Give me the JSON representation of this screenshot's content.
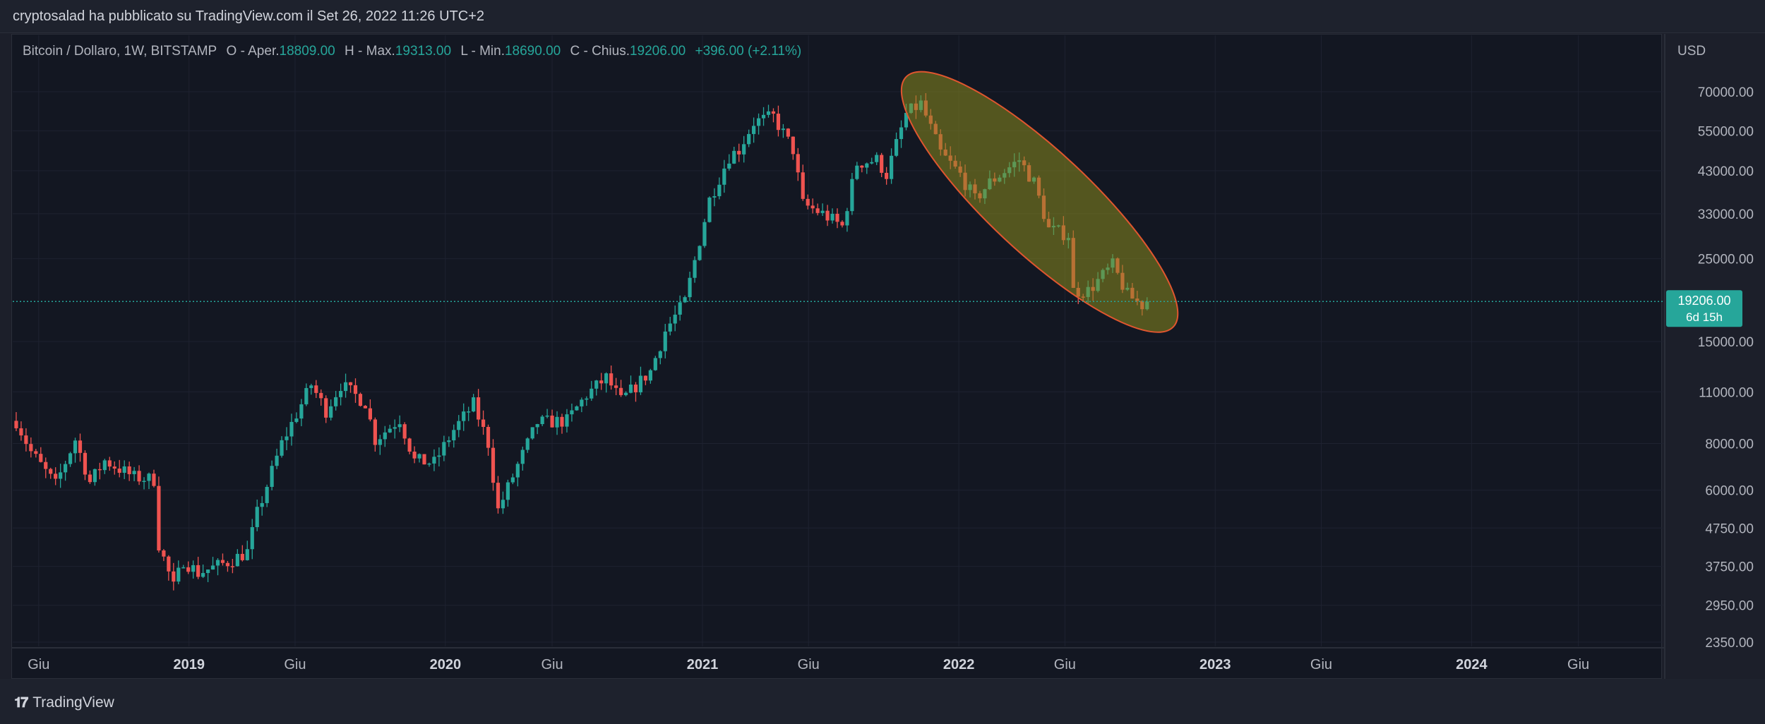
{
  "header": {
    "published_text": "cryptosalad ha pubblicato su TradingView.com il Set 26, 2022 11:26 UTC+2"
  },
  "legend": {
    "symbol": "Bitcoin / Dollaro, 1W, BITSTAMP",
    "open_label": "O - Aper.",
    "open_value": "18809.00",
    "high_label": "H - Max.",
    "high_value": "19313.00",
    "low_label": "L - Min.",
    "low_value": "18690.00",
    "close_label": "C - Chius.",
    "close_value": "19206.00",
    "change": "+396.00 (+2.11%)"
  },
  "price_badge": {
    "price": "19206.00",
    "countdown": "6d 15h"
  },
  "footer": {
    "brand": "TradingView",
    "logo_icon": "tradingview-logo-icon"
  },
  "colors": {
    "up": "#26a69a",
    "down": "#ef5350",
    "background": "#131722",
    "grid": "#1e2230",
    "highlight_fill": "#8b8b1e",
    "highlight_stroke": "#e0562f"
  },
  "chart_data": {
    "type": "candlestick",
    "currency_label": "USD",
    "y_scale": "log",
    "ylim": [
      2250,
      90000
    ],
    "y_ticks": [
      {
        "value": 70000,
        "label": "70000.00"
      },
      {
        "value": 55000,
        "label": "55000.00"
      },
      {
        "value": 43000,
        "label": "43000.00"
      },
      {
        "value": 33000,
        "label": "33000.00"
      },
      {
        "value": 25000,
        "label": "25000.00"
      },
      {
        "value": 15000,
        "label": "15000.00"
      },
      {
        "value": 11000,
        "label": "11000.00"
      },
      {
        "value": 8000,
        "label": "8000.00"
      },
      {
        "value": 6000,
        "label": "6000.00"
      },
      {
        "value": 4750,
        "label": "4750.00"
      },
      {
        "value": 3750,
        "label": "3750.00"
      },
      {
        "value": 2950,
        "label": "2950.00"
      },
      {
        "value": 2350,
        "label": "2350.00"
      }
    ],
    "x_range": [
      "2018-04-23",
      "2024-09-30"
    ],
    "x_ticks": [
      {
        "date": "2018-06-01",
        "label": "Giu",
        "bold": false
      },
      {
        "date": "2019-01-01",
        "label": "2019",
        "bold": true
      },
      {
        "date": "2019-06-01",
        "label": "Giu",
        "bold": false
      },
      {
        "date": "2020-01-01",
        "label": "2020",
        "bold": true
      },
      {
        "date": "2020-06-01",
        "label": "Giu",
        "bold": false
      },
      {
        "date": "2021-01-01",
        "label": "2021",
        "bold": true
      },
      {
        "date": "2021-06-01",
        "label": "Giu",
        "bold": false
      },
      {
        "date": "2022-01-01",
        "label": "2022",
        "bold": true
      },
      {
        "date": "2022-06-01",
        "label": "Giu",
        "bold": false
      },
      {
        "date": "2023-01-01",
        "label": "2023",
        "bold": true
      },
      {
        "date": "2023-06-01",
        "label": "Giu",
        "bold": false
      },
      {
        "date": "2024-01-01",
        "label": "2024",
        "bold": true
      },
      {
        "date": "2024-06-01",
        "label": "Giu",
        "bold": false
      }
    ],
    "last_close": 19206,
    "highlight_ellipse": {
      "start_date": "2021-11-08",
      "start_price": 68000,
      "end_date": "2022-09-26",
      "end_price": 18500
    },
    "price_path": [
      [
        "2018-04-30",
        9200
      ],
      [
        "2018-05-21",
        7600
      ],
      [
        "2018-06-25",
        6200
      ],
      [
        "2018-07-23",
        8200
      ],
      [
        "2018-08-13",
        6300
      ],
      [
        "2018-09-03",
        7200
      ],
      [
        "2018-10-15",
        6500
      ],
      [
        "2018-11-12",
        6400
      ],
      [
        "2018-11-19",
        4300
      ],
      [
        "2018-12-10",
        3300
      ],
      [
        "2018-12-24",
        3900
      ],
      [
        "2019-01-14",
        3600
      ],
      [
        "2019-02-25",
        3850
      ],
      [
        "2019-03-25",
        4100
      ],
      [
        "2019-04-08",
        5200
      ],
      [
        "2019-05-13",
        8000
      ],
      [
        "2019-06-24",
        11500
      ],
      [
        "2019-07-15",
        9800
      ],
      [
        "2019-08-05",
        11500
      ],
      [
        "2019-09-09",
        10300
      ],
      [
        "2019-09-23",
        8200
      ],
      [
        "2019-10-28",
        9300
      ],
      [
        "2019-11-18",
        7200
      ],
      [
        "2019-12-16",
        7100
      ],
      [
        "2020-01-13",
        8700
      ],
      [
        "2020-02-10",
        10200
      ],
      [
        "2020-03-02",
        8000
      ],
      [
        "2020-03-16",
        5300
      ],
      [
        "2020-04-13",
        7000
      ],
      [
        "2020-05-11",
        9100
      ],
      [
        "2020-06-22",
        9200
      ],
      [
        "2020-07-20",
        10800
      ],
      [
        "2020-08-17",
        12000
      ],
      [
        "2020-09-07",
        10400
      ],
      [
        "2020-10-19",
        12500
      ],
      [
        "2020-11-09",
        16000
      ],
      [
        "2020-12-07",
        19200
      ],
      [
        "2020-12-28",
        28000
      ],
      [
        "2021-01-11",
        36000
      ],
      [
        "2021-02-08",
        47000
      ],
      [
        "2021-02-22",
        49000
      ],
      [
        "2021-03-15",
        58000
      ],
      [
        "2021-04-12",
        60000
      ],
      [
        "2021-05-10",
        49000
      ],
      [
        "2021-05-24",
        35000
      ],
      [
        "2021-06-21",
        33000
      ],
      [
        "2021-07-19",
        30500
      ],
      [
        "2021-08-09",
        45000
      ],
      [
        "2021-09-06",
        46000
      ],
      [
        "2021-09-20",
        42000
      ],
      [
        "2021-10-18",
        61000
      ],
      [
        "2021-11-08",
        65000
      ],
      [
        "2021-12-06",
        48000
      ],
      [
        "2022-01-03",
        42000
      ],
      [
        "2022-01-24",
        36000
      ],
      [
        "2022-02-14",
        40000
      ],
      [
        "2022-03-28",
        46000
      ],
      [
        "2022-04-18",
        40000
      ],
      [
        "2022-05-09",
        30000
      ],
      [
        "2022-06-06",
        29000
      ],
      [
        "2022-06-13",
        20500
      ],
      [
        "2022-07-04",
        20500
      ],
      [
        "2022-08-08",
        24000
      ],
      [
        "2022-08-29",
        20000
      ],
      [
        "2022-09-19",
        18800
      ],
      [
        "2022-09-26",
        19206
      ]
    ]
  }
}
